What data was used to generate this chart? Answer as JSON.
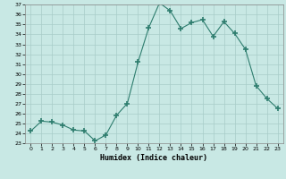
{
  "x": [
    0,
    1,
    2,
    3,
    4,
    5,
    6,
    7,
    8,
    9,
    10,
    11,
    12,
    13,
    14,
    15,
    16,
    17,
    18,
    19,
    20,
    21,
    22,
    23
  ],
  "y": [
    24.2,
    25.2,
    25.1,
    24.8,
    24.3,
    24.2,
    23.2,
    23.8,
    25.8,
    27.0,
    31.2,
    34.7,
    37.2,
    36.4,
    34.6,
    35.2,
    35.5,
    33.8,
    35.3,
    34.1,
    32.5,
    28.8,
    27.5,
    26.5
  ],
  "line_color": "#2e7d6e",
  "marker": "+",
  "marker_color": "#2e7d6e",
  "background_color": "#c8e8e4",
  "grid_color": "#a8ccc8",
  "xlabel": "Humidex (Indice chaleur)",
  "xlim": [
    -0.5,
    23.5
  ],
  "ylim": [
    23,
    37
  ],
  "yticks": [
    23,
    24,
    25,
    26,
    27,
    28,
    29,
    30,
    31,
    32,
    33,
    34,
    35,
    36,
    37
  ],
  "xticks": [
    0,
    1,
    2,
    3,
    4,
    5,
    6,
    7,
    8,
    9,
    10,
    11,
    12,
    13,
    14,
    15,
    16,
    17,
    18,
    19,
    20,
    21,
    22,
    23
  ]
}
